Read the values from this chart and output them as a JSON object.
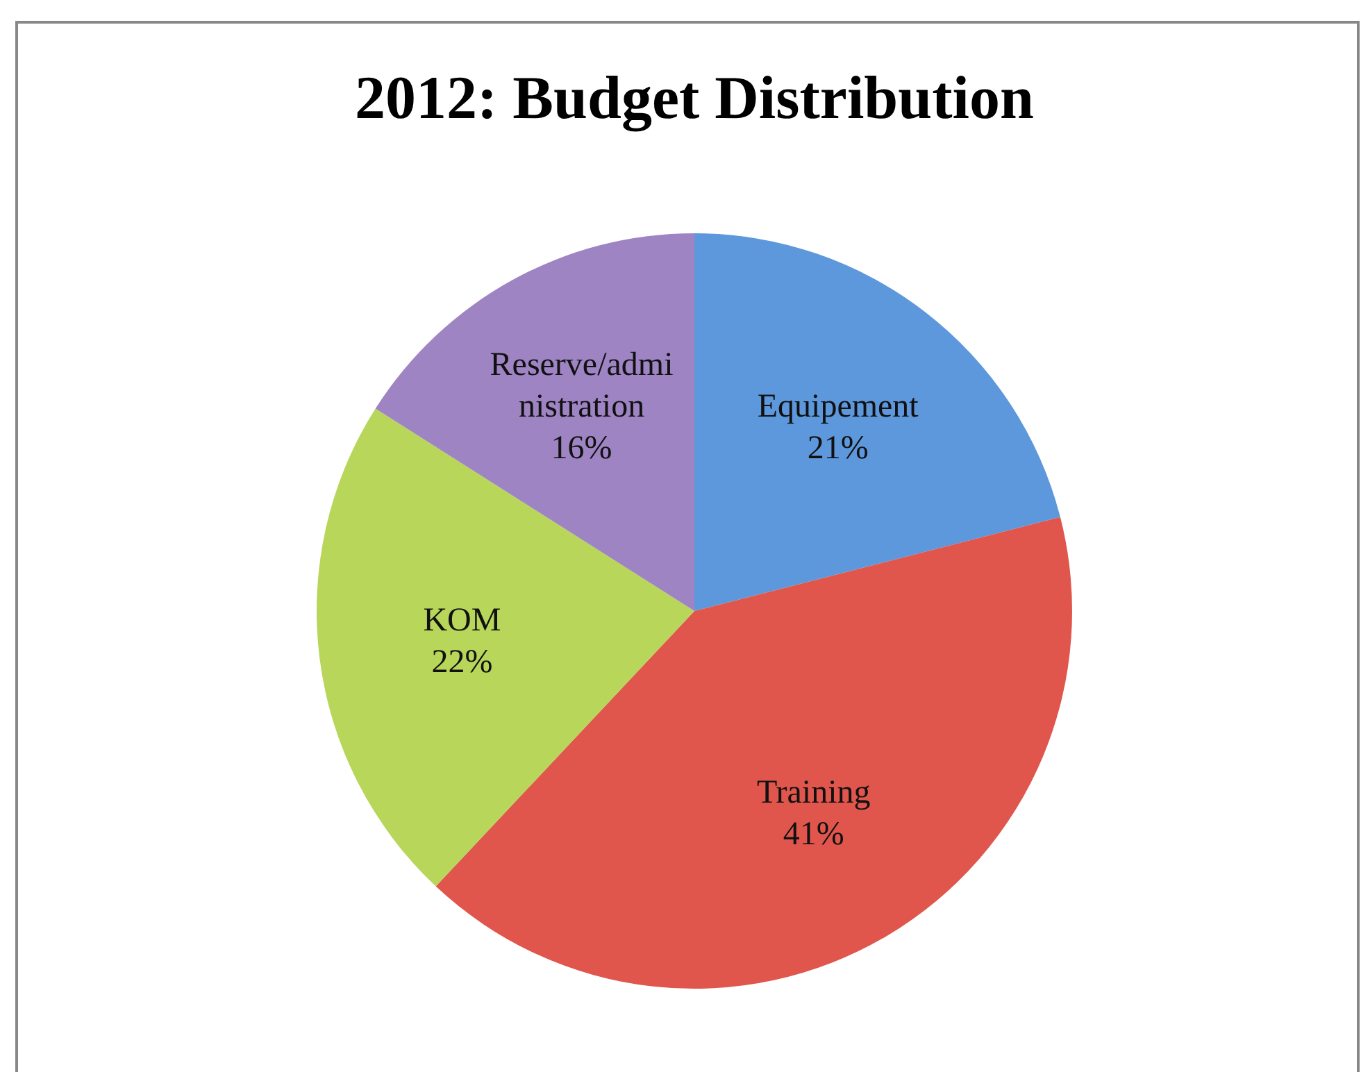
{
  "chart_data": {
    "type": "pie",
    "title": "2012: Budget Distribution",
    "categories": [
      "Equipement",
      "Training",
      "KOM",
      "Reserve/administration"
    ],
    "values": [
      21,
      41,
      22,
      16
    ],
    "colors": [
      "#5d97dc",
      "#e0564c",
      "#b7d65a",
      "#9f84c4"
    ],
    "value_labels": [
      "21%",
      "41%",
      "22%",
      "16%"
    ]
  }
}
